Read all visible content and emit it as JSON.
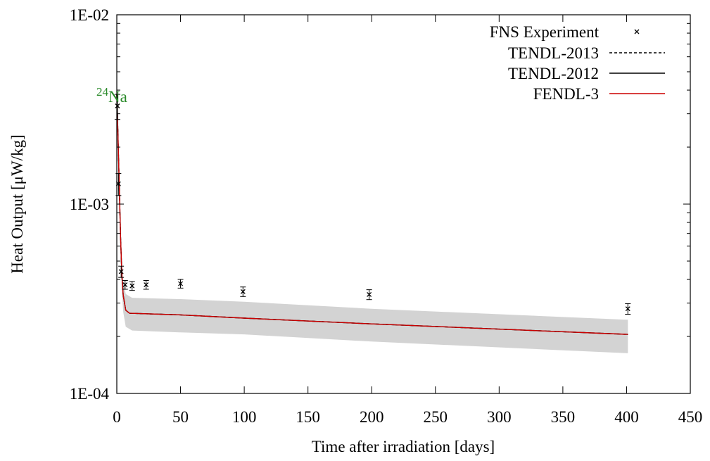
{
  "chart_data": {
    "type": "line",
    "xlabel": "Time after irradiation [days]",
    "ylabel": "Heat Output [μW/kg]",
    "xlim": [
      0,
      450
    ],
    "ylim": [
      0.0001,
      0.01
    ],
    "yscale": "log",
    "grid": false,
    "legend_position": "top-right",
    "x_ticks": [
      0,
      50,
      100,
      150,
      200,
      250,
      300,
      350,
      400,
      450
    ],
    "y_ticks": [
      {
        "value": 0.01,
        "label": "1E-02"
      },
      {
        "value": 0.001,
        "label": "1E-03"
      },
      {
        "value": 0.0001,
        "label": "1E-04"
      }
    ],
    "annotation": {
      "superscript": "24",
      "text": "Na",
      "x": 0,
      "y": 0.0038,
      "color": "#2a8a2a"
    },
    "series": [
      {
        "name": "FNS Experiment",
        "kind": "points",
        "marker": "x",
        "color": "#000000",
        "x": [
          0.5,
          1.3,
          3.4,
          6.5,
          12,
          23,
          50,
          99,
          198,
          401
        ],
        "y": [
          0.0033,
          0.00128,
          0.00044,
          0.000375,
          0.00037,
          0.000375,
          0.00038,
          0.000345,
          0.000333,
          0.00028
        ],
        "err": [
          0.0005,
          0.00017,
          3e-05,
          2e-05,
          2e-05,
          2e-05,
          2e-05,
          2e-05,
          2e-05,
          1.8e-05
        ]
      },
      {
        "name": "TENDL-2013",
        "kind": "line",
        "dash": "4,3",
        "color": "#000000",
        "x": [
          0,
          0.5,
          1,
          2,
          3,
          4,
          5,
          7,
          10,
          50,
          100,
          200,
          401
        ],
        "y": [
          0.0038,
          0.003,
          0.0022,
          0.0012,
          0.00066,
          0.00042,
          0.00033,
          0.000275,
          0.000265,
          0.00026,
          0.00025,
          0.000233,
          0.000205
        ]
      },
      {
        "name": "TENDL-2012",
        "kind": "line",
        "dash": "",
        "color": "#000000",
        "x": [
          0,
          0.5,
          1,
          2,
          3,
          4,
          5,
          7,
          10,
          50,
          100,
          200,
          401
        ],
        "y": [
          0.0038,
          0.003,
          0.0022,
          0.0012,
          0.00066,
          0.00042,
          0.00033,
          0.000275,
          0.000265,
          0.00026,
          0.00025,
          0.000233,
          0.000205
        ]
      },
      {
        "name": "FENDL-3",
        "kind": "line",
        "dash": "",
        "color": "#cc0000",
        "x": [
          0,
          0.5,
          1,
          2,
          3,
          4,
          5,
          7,
          10,
          50,
          100,
          200,
          401
        ],
        "y": [
          0.0038,
          0.003,
          0.0022,
          0.0012,
          0.00066,
          0.00042,
          0.00033,
          0.000275,
          0.000265,
          0.00026,
          0.00025,
          0.000233,
          0.000205
        ]
      }
    ],
    "uncertainty_band": {
      "color": "#d3d3d3",
      "x": [
        0,
        0.5,
        1,
        2,
        3,
        4,
        5,
        7,
        12,
        50,
        100,
        200,
        401
      ],
      "upper": [
        0.0043,
        0.0034,
        0.0025,
        0.00138,
        0.00076,
        0.00049,
        0.00039,
        0.000335,
        0.00032,
        0.000315,
        0.000305,
        0.00028,
        0.000245
      ],
      "lower": [
        0.0033,
        0.0026,
        0.0019,
        0.00102,
        0.00056,
        0.00035,
        0.00027,
        0.000225,
        0.000215,
        0.00021,
        0.000205,
        0.000188,
        0.000163
      ]
    }
  }
}
